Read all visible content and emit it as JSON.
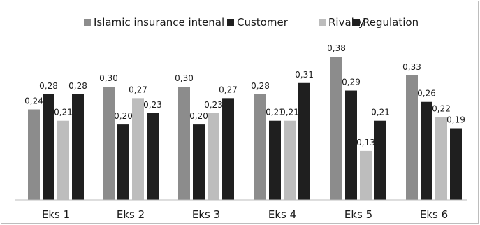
{
  "chart_data": {
    "type": "bar",
    "title": "",
    "xlabel": "",
    "ylabel": "",
    "ylim": [
      0,
      0.4
    ],
    "grid": false,
    "legend_position": "top",
    "categories": [
      "Eks 1",
      "Eks 2",
      "Eks 3",
      "Eks 4",
      "Eks 5",
      "Eks 6"
    ],
    "series": [
      {
        "name": "Islamic insurance intenal",
        "color": "#8c8c8c",
        "values": [
          0.24,
          0.3,
          0.3,
          0.28,
          0.38,
          0.33
        ],
        "labels": [
          "0,24",
          "0,30",
          "0,30",
          "0,28",
          "0,38",
          "0,33"
        ]
      },
      {
        "name": "Customer",
        "color": "#1f1f1f",
        "values": [
          0.28,
          0.2,
          0.2,
          0.21,
          0.29,
          0.26
        ],
        "labels": [
          "0,28",
          "0,20",
          "0,20",
          "0,21",
          "0,29",
          "0,26"
        ]
      },
      {
        "name": "Rivalry",
        "color": "#bdbdbd",
        "values": [
          0.21,
          0.27,
          0.23,
          0.21,
          0.13,
          0.22
        ],
        "labels": [
          "0,21",
          "0,27",
          "0,23",
          "0,21",
          "0,13",
          "0,22"
        ]
      },
      {
        "name": "Regulation",
        "color": "#1f1f1f",
        "values": [
          0.28,
          0.23,
          0.27,
          0.31,
          0.21,
          0.19
        ],
        "labels": [
          "0,28",
          "0,23",
          "0,27",
          "0,31",
          "0,21",
          "0,19"
        ]
      }
    ]
  }
}
